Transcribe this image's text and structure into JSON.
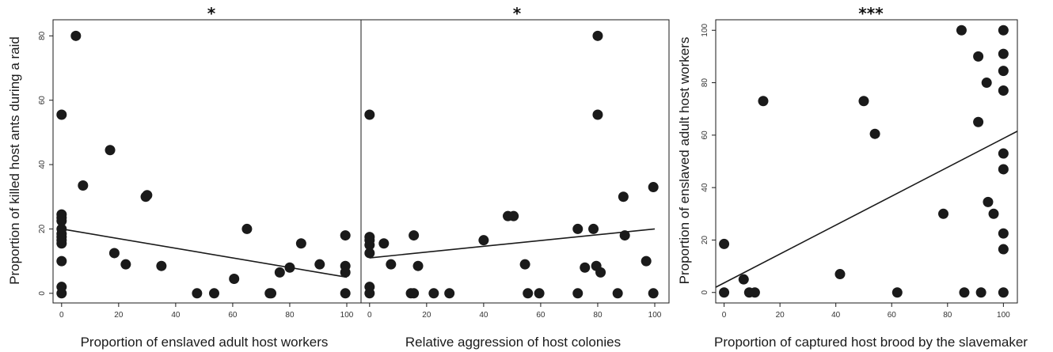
{
  "chart_data": [
    {
      "type": "scatter",
      "title": "*",
      "xlabel": "Proportion of enslaved adult host workers",
      "ylabel": "Proportion of killed host ants during a raid",
      "xlim": [
        -3,
        105
      ],
      "ylim": [
        -3,
        85
      ],
      "xticks": [
        "0",
        "20",
        "40",
        "60",
        "80",
        "100"
      ],
      "yticks": [
        "0",
        "20",
        "40",
        "60",
        "80"
      ],
      "points": [
        [
          0,
          0
        ],
        [
          0,
          2
        ],
        [
          0,
          10
        ],
        [
          0,
          15.5
        ],
        [
          0,
          16.5
        ],
        [
          0,
          17.5
        ],
        [
          0,
          18.5
        ],
        [
          0,
          20
        ],
        [
          0,
          22.5
        ],
        [
          0,
          23.5
        ],
        [
          0,
          24.5
        ],
        [
          0,
          55.5
        ],
        [
          5,
          80
        ],
        [
          7.5,
          33.5
        ],
        [
          17,
          44.5
        ],
        [
          18.5,
          12.5
        ],
        [
          22.5,
          9
        ],
        [
          29.5,
          30
        ],
        [
          30,
          30.5
        ],
        [
          35,
          8.5
        ],
        [
          47.5,
          0
        ],
        [
          53.5,
          0
        ],
        [
          60.5,
          4.5
        ],
        [
          65,
          20
        ],
        [
          73,
          0
        ],
        [
          73.5,
          0
        ],
        [
          76.5,
          6.5
        ],
        [
          80,
          8
        ],
        [
          84,
          15.5
        ],
        [
          90.5,
          9
        ],
        [
          99.5,
          0
        ],
        [
          99.5,
          6.5
        ],
        [
          99.5,
          8.5
        ],
        [
          99.5,
          18
        ]
      ],
      "fit": [
        [
          0,
          20
        ],
        [
          100,
          5
        ]
      ],
      "grid": false
    },
    {
      "type": "scatter",
      "title": "*",
      "xlabel": "Relative aggression of host colonies",
      "ylabel": "",
      "xlim": [
        -3,
        105
      ],
      "ylim": [
        -3,
        85
      ],
      "xticks": [
        "0",
        "20",
        "40",
        "60",
        "80",
        "100"
      ],
      "yticks": [],
      "points": [
        [
          0,
          0
        ],
        [
          0,
          2
        ],
        [
          0,
          12.5
        ],
        [
          0,
          15
        ],
        [
          0,
          16.5
        ],
        [
          0,
          17.5
        ],
        [
          0,
          55.5
        ],
        [
          5,
          15.5
        ],
        [
          7.5,
          9
        ],
        [
          14.5,
          0
        ],
        [
          15.5,
          18
        ],
        [
          15.5,
          0
        ],
        [
          17,
          8.5
        ],
        [
          22.5,
          0
        ],
        [
          28,
          0
        ],
        [
          40,
          16.5
        ],
        [
          48.5,
          24
        ],
        [
          50.5,
          24
        ],
        [
          54.5,
          9
        ],
        [
          55.5,
          0
        ],
        [
          59.5,
          0
        ],
        [
          73,
          20
        ],
        [
          73,
          0
        ],
        [
          75.5,
          8
        ],
        [
          78.5,
          20
        ],
        [
          79.5,
          8.5
        ],
        [
          80,
          80
        ],
        [
          80,
          55.5
        ],
        [
          81,
          6.5
        ],
        [
          87,
          0
        ],
        [
          89,
          30
        ],
        [
          89.5,
          18
        ],
        [
          97,
          10
        ],
        [
          99.5,
          33
        ],
        [
          99.5,
          0
        ]
      ],
      "fit": [
        [
          0,
          11
        ],
        [
          100,
          20
        ]
      ],
      "grid": false
    },
    {
      "type": "scatter",
      "title": "***",
      "xlabel": "Proportion of captured host brood by the slavemaker",
      "ylabel": "Proportion of enslaved adult host workers",
      "xlim": [
        -3,
        105
      ],
      "ylim": [
        -4,
        104
      ],
      "xticks": [
        "0",
        "20",
        "40",
        "60",
        "80",
        "100"
      ],
      "yticks": [
        "0",
        "20",
        "40",
        "60",
        "80",
        "100"
      ],
      "points": [
        [
          0,
          0
        ],
        [
          0,
          18.5
        ],
        [
          7,
          5
        ],
        [
          9,
          0
        ],
        [
          11,
          0
        ],
        [
          14,
          73
        ],
        [
          41.5,
          7
        ],
        [
          50,
          73
        ],
        [
          54,
          60.5
        ],
        [
          62,
          0
        ],
        [
          78.5,
          30
        ],
        [
          85,
          100
        ],
        [
          86,
          0
        ],
        [
          91,
          90
        ],
        [
          91,
          65
        ],
        [
          92,
          0
        ],
        [
          94,
          80
        ],
        [
          94.5,
          34.5
        ],
        [
          96.5,
          30
        ],
        [
          100,
          100
        ],
        [
          100,
          91
        ],
        [
          100,
          84.5
        ],
        [
          100,
          77
        ],
        [
          100,
          53
        ],
        [
          100,
          47
        ],
        [
          100,
          22.5
        ],
        [
          100,
          16.5
        ],
        [
          100,
          0
        ]
      ],
      "fit": [
        [
          -3,
          2
        ],
        [
          105,
          61.5
        ]
      ],
      "grid": false
    }
  ],
  "colors": {
    "points": "#1a1a1a",
    "line": "#1a1a1a",
    "frame": "#1a1a1a",
    "background": "#ffffff"
  }
}
